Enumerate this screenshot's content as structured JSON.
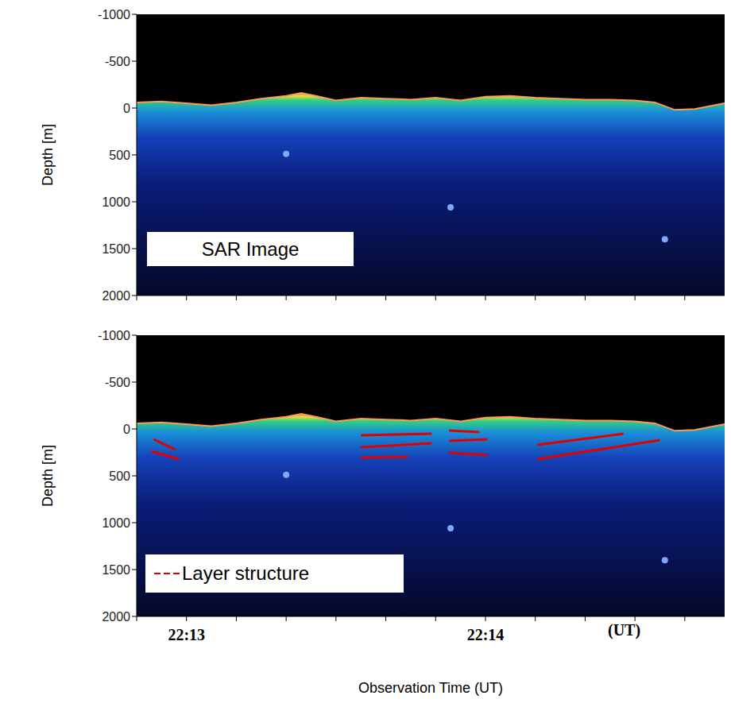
{
  "chart_data": [
    {
      "type": "area",
      "x": [
        79970,
        79975,
        79980,
        79985,
        79990,
        79995,
        80000,
        80003,
        80006,
        80010,
        80015,
        80020,
        80025,
        80030,
        80035,
        80040,
        80045,
        80050,
        80055,
        80060,
        80065,
        80070,
        80074,
        80078,
        80082,
        80088
      ],
      "values": [
        -60,
        -70,
        -50,
        -30,
        -60,
        -100,
        -130,
        -160,
        -130,
        -80,
        -110,
        -100,
        -90,
        -110,
        -80,
        -120,
        -130,
        -110,
        -100,
        -90,
        -90,
        -80,
        -60,
        20,
        10,
        -50
      ],
      "xlim": [
        79970,
        80088
      ],
      "xticks": [
        {
          "value": 79970,
          "label": null
        },
        {
          "value": 79980,
          "label": null
        },
        {
          "value": 79990,
          "label": null
        },
        {
          "value": 80000,
          "label": null
        },
        {
          "value": 80010,
          "label": null
        },
        {
          "value": 80020,
          "label": null
        },
        {
          "value": 80030,
          "label": null
        },
        {
          "value": 80040,
          "label": null
        },
        {
          "value": 80050,
          "label": null
        },
        {
          "value": 80060,
          "label": null
        },
        {
          "value": 80070,
          "label": null
        },
        {
          "value": 80080,
          "label": null
        }
      ],
      "ylim": [
        -1000,
        2000
      ],
      "yticks": [
        -1000,
        -500,
        0,
        500,
        1000,
        1500,
        2000
      ],
      "ylabel": "Depth [m]",
      "tick_labels": "y",
      "annotations": [
        {
          "text": "SAR Image"
        }
      ],
      "bright_spots": {
        "x": [
          80033,
          80000,
          80076
        ],
        "y": [
          1059,
          490,
          1400
        ]
      }
    },
    {
      "type": "area",
      "x": [
        79970,
        79975,
        79980,
        79985,
        79990,
        79995,
        80000,
        80003,
        80006,
        80010,
        80015,
        80020,
        80025,
        80030,
        80035,
        80040,
        80045,
        80050,
        80055,
        80060,
        80065,
        80070,
        80074,
        80078,
        80082,
        80088
      ],
      "values": [
        -60,
        -70,
        -50,
        -30,
        -60,
        -100,
        -130,
        -160,
        -130,
        -80,
        -110,
        -100,
        -90,
        -110,
        -80,
        -120,
        -130,
        -110,
        -100,
        -90,
        -90,
        -80,
        -60,
        20,
        10,
        -50
      ],
      "xlim": [
        79970,
        80088
      ],
      "xticks": [
        {
          "value": 79970,
          "label": null
        },
        {
          "value": 79980,
          "label": "22:13"
        },
        {
          "value": 79990,
          "label": null
        },
        {
          "value": 80000,
          "label": null
        },
        {
          "value": 80010,
          "label": null
        },
        {
          "value": 80020,
          "label": null
        },
        {
          "value": 80030,
          "label": null
        },
        {
          "value": 80040,
          "label": "22:14"
        },
        {
          "value": 80050,
          "label": null
        },
        {
          "value": 80060,
          "label": null
        },
        {
          "value": 80070,
          "label": null
        },
        {
          "value": 80080,
          "label": null
        }
      ],
      "ylim": [
        -1000,
        2000
      ],
      "yticks": [
        -1000,
        -500,
        0,
        500,
        1000,
        1500,
        2000
      ],
      "ylabel": "Depth [m]",
      "xlabel": "Observation Time (UT)",
      "tick_labels": true,
      "annotations": [
        {
          "text": "(UT)"
        }
      ],
      "legend": "lower left",
      "bright_spots": {
        "x": [
          80033,
          80000,
          80076
        ],
        "y": [
          1059,
          490,
          1400
        ]
      },
      "series": [
        {
          "name": "Layer structure",
          "color": "#e00000",
          "type": "line",
          "segments": [
            {
              "x": [
                79973.4,
                79977.7
              ],
              "y": [
                110,
                220
              ]
            },
            {
              "x": [
                79972.9,
                79978.5
              ],
              "y": [
                237,
                322
              ]
            },
            {
              "x": [
                80015.0,
                80029.2
              ],
              "y": [
                68,
                51
              ]
            },
            {
              "x": [
                80015.0,
                80029.2
              ],
              "y": [
                195,
                153
              ]
            },
            {
              "x": [
                80015.0,
                80024.4
              ],
              "y": [
                305,
                297
              ]
            },
            {
              "x": [
                80032.7,
                80038.8
              ],
              "y": [
                17,
                34
              ]
            },
            {
              "x": [
                80032.7,
                80040.4
              ],
              "y": [
                127,
                110
              ]
            },
            {
              "x": [
                80032.7,
                80040.4
              ],
              "y": [
                254,
                280
              ]
            },
            {
              "x": [
                80050.4,
                80067.7
              ],
              "y": [
                170,
                51
              ]
            },
            {
              "x": [
                80050.4,
                80075.0
              ],
              "y": [
                322,
                119
              ]
            }
          ]
        }
      ]
    }
  ]
}
